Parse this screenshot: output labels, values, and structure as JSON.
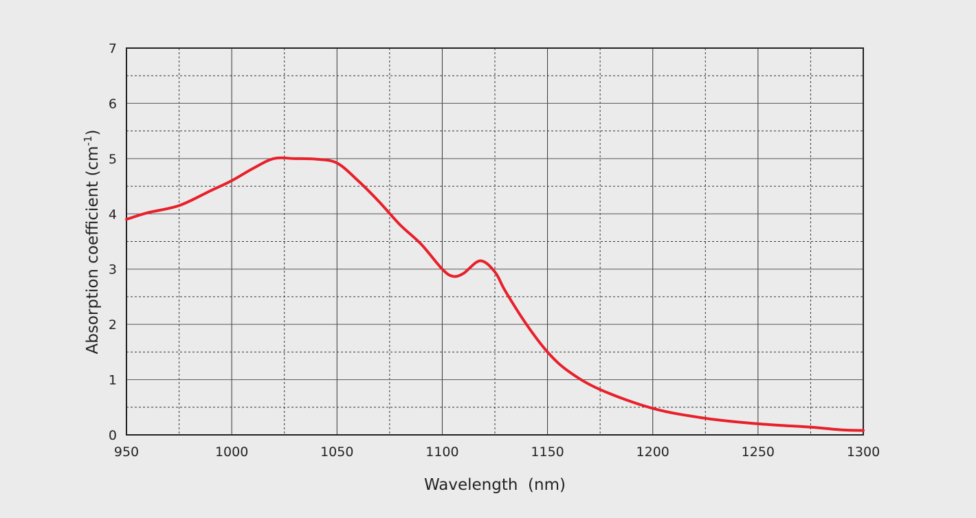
{
  "chart_data": {
    "type": "line",
    "title": "",
    "xlabel": "Wavelength  (nm)",
    "ylabel": "Absorption coefficient (cm",
    "ylabel_superscript": "-1",
    "ylabel_close": ")",
    "xlim": [
      950,
      1300
    ],
    "ylim": [
      0,
      7
    ],
    "xticks": [
      950,
      1000,
      1050,
      1100,
      1150,
      1200,
      1250,
      1300
    ],
    "yticks": [
      0,
      1,
      2,
      3,
      4,
      5,
      6,
      7
    ],
    "grid": true,
    "line_color": "#e8202a",
    "series": [
      {
        "name": "absorption",
        "x": [
          950,
          960,
          975,
          990,
          1000,
          1010,
          1020,
          1030,
          1040,
          1050,
          1060,
          1070,
          1080,
          1090,
          1100,
          1105,
          1110,
          1118,
          1125,
          1130,
          1140,
          1150,
          1160,
          1175,
          1200,
          1225,
          1250,
          1275,
          1290,
          1300
        ],
        "y": [
          3.9,
          4.02,
          4.15,
          4.42,
          4.6,
          4.82,
          5.0,
          5.0,
          4.99,
          4.92,
          4.6,
          4.22,
          3.8,
          3.45,
          3.0,
          2.87,
          2.92,
          3.15,
          2.95,
          2.6,
          2.0,
          1.5,
          1.15,
          0.82,
          0.48,
          0.3,
          0.2,
          0.14,
          0.09,
          0.08
        ]
      }
    ]
  }
}
